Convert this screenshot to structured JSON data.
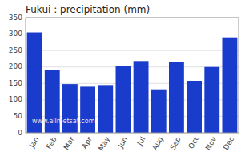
{
  "chart_data": {
    "type": "bar",
    "title": "Fukui : precipitation (mm)",
    "categories": [
      "Jan",
      "Feb",
      "Mar",
      "Apr",
      "May",
      "Jun",
      "Jul",
      "Aug",
      "Sep",
      "Oct",
      "Nov",
      "Dec"
    ],
    "values": [
      305,
      190,
      148,
      140,
      145,
      203,
      218,
      132,
      215,
      158,
      200,
      290
    ],
    "color": "#1a3ccc",
    "ylim": [
      0,
      350
    ],
    "yticks": [
      0,
      50,
      100,
      150,
      200,
      250,
      300,
      350
    ],
    "grid": true,
    "annotations": [
      "www.allmetsat.com"
    ]
  }
}
